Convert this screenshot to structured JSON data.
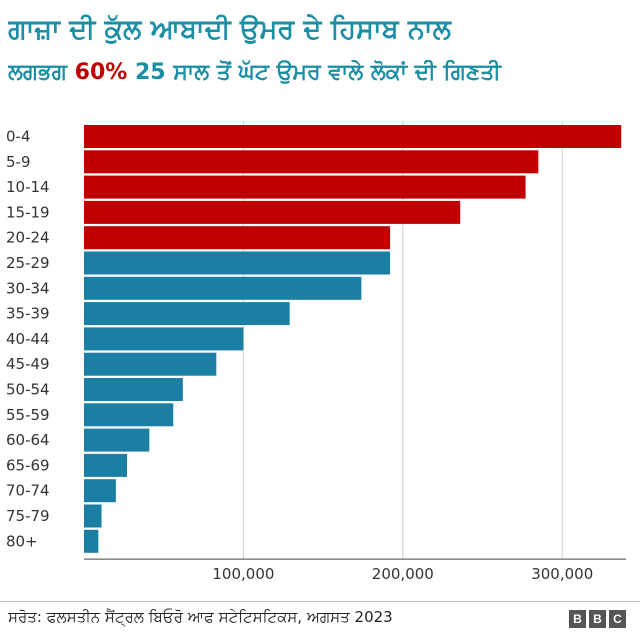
{
  "title": "ਗਾਜ਼ਾ ਦੀ ਕੁੱਲ ਆਬਾਦੀ ਉਮਰ ਦੇ ਹਿਸਾਬ ਨਾਲ",
  "subtitle": {
    "prefix": "ਲਗਭਗ ",
    "highlight": "60%",
    "suffix": " 25 ਸਾਲ ਤੋਂ ਘੱਟ ਉਮਰ ਵਾਲੇ ਲੋਕਾਂ ਦੀ ਗਿਣਤੀ"
  },
  "source": "ਸਰੋਤ: ਫਲਸਤੀਨ ਸੈਂਟ੍ਰਲ ਬਿਓਰੋ ਆਫ ਸਟੇਟਿਸਟਿਕਸ, ਅਗਸਤ 2023",
  "logo": [
    "B",
    "B",
    "C"
  ],
  "colors": {
    "highlight": "#c00000",
    "base": "#1a7fa3",
    "title": "#1a8fa6"
  },
  "chart_data": {
    "type": "bar",
    "orientation": "horizontal",
    "categories": [
      "0-4",
      "5-9",
      "10-14",
      "15-19",
      "20-24",
      "25-29",
      "30-34",
      "35-39",
      "40-44",
      "45-49",
      "50-54",
      "55-59",
      "60-64",
      "65-69",
      "70-74",
      "75-79",
      "80+"
    ],
    "values": [
      337000,
      285000,
      277000,
      236000,
      192000,
      192000,
      174000,
      129000,
      100000,
      83000,
      62000,
      56000,
      41000,
      27000,
      20000,
      11000,
      9000
    ],
    "highlight_count": 5,
    "xlim": [
      0,
      340000
    ],
    "xticks": [
      100000,
      200000,
      300000
    ],
    "xtick_labels": [
      "100,000",
      "200,000",
      "300,000"
    ],
    "grid": true
  }
}
